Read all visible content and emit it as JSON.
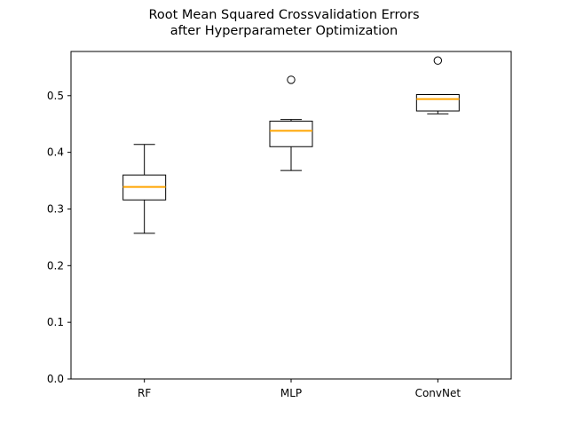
{
  "chart_data": {
    "type": "box",
    "title": "Root Mean Squared Crossvalidation Errors\nafter Hyperparameter Optimization",
    "title_lines": [
      "Root Mean Squared Crossvalidation Errors",
      "after Hyperparameter Optimization"
    ],
    "xlabel": "",
    "ylabel": "",
    "ylim": [
      0,
      0.578
    ],
    "yticks": [
      0.0,
      0.1,
      0.2,
      0.3,
      0.4,
      0.5
    ],
    "ytick_labels": [
      "0.0",
      "0.1",
      "0.2",
      "0.3",
      "0.4",
      "0.5"
    ],
    "categories": [
      "RF",
      "MLP",
      "ConvNet"
    ],
    "boxes": [
      {
        "category": "RF",
        "whisker_low": 0.257,
        "q1": 0.316,
        "median": 0.339,
        "q3": 0.36,
        "whisker_high": 0.414,
        "outliers": []
      },
      {
        "category": "MLP",
        "whisker_low": 0.368,
        "q1": 0.41,
        "median": 0.438,
        "q3": 0.455,
        "whisker_high": 0.458,
        "outliers": [
          0.528
        ]
      },
      {
        "category": "ConvNet",
        "whisker_low": 0.468,
        "q1": 0.473,
        "median": 0.494,
        "q3": 0.502,
        "whisker_high": 0.502,
        "outliers": [
          0.562
        ]
      }
    ],
    "grid": false,
    "legend": "none",
    "colors": {
      "box": "#000000",
      "median": "#ffa500",
      "outlier": "#000000",
      "background": "#ffffff"
    }
  }
}
